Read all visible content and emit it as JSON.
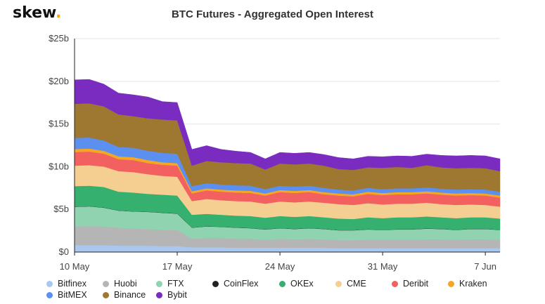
{
  "logo": {
    "text": "skew",
    "dot": "."
  },
  "chart_data": {
    "type": "area",
    "stacked": true,
    "title": "BTC Futures - Aggregated Open Interest",
    "xlabel": "",
    "ylabel": "",
    "ylim": [
      0,
      25
    ],
    "y_ticks": [
      "$0",
      "$5b",
      "$10b",
      "$15b",
      "$20b",
      "$25b"
    ],
    "y_tick_values": [
      0,
      5,
      10,
      15,
      20,
      25
    ],
    "x_ticks": [
      "10 May",
      "17 May",
      "24 May",
      "31 May",
      "7 Jun"
    ],
    "x_tick_positions": [
      0,
      7,
      14,
      21,
      28
    ],
    "x": [
      0,
      1,
      2,
      3,
      4,
      5,
      6,
      7,
      8,
      9,
      10,
      11,
      12,
      13,
      14,
      15,
      16,
      17,
      18,
      19,
      20,
      21,
      22,
      23,
      24,
      25,
      26,
      27,
      28,
      29
    ],
    "series": [
      {
        "name": "Bitfinex",
        "color": "#a9c8f0",
        "values": [
          0.8,
          0.8,
          0.8,
          0.75,
          0.75,
          0.75,
          0.7,
          0.7,
          0.55,
          0.55,
          0.55,
          0.5,
          0.5,
          0.5,
          0.5,
          0.5,
          0.5,
          0.5,
          0.45,
          0.45,
          0.45,
          0.45,
          0.45,
          0.45,
          0.45,
          0.45,
          0.45,
          0.45,
          0.45,
          0.45
        ]
      },
      {
        "name": "Huobi",
        "color": "#b5b5b5",
        "values": [
          2.2,
          2.25,
          2.2,
          2.1,
          2.0,
          1.95,
          1.9,
          1.9,
          1.0,
          1.1,
          1.1,
          1.05,
          1.05,
          0.95,
          1.05,
          1.0,
          1.05,
          1.0,
          0.95,
          0.95,
          1.0,
          1.0,
          1.0,
          1.0,
          1.05,
          1.05,
          1.0,
          1.05,
          1.05,
          1.0
        ]
      },
      {
        "name": "FTX",
        "color": "#8fd3b0",
        "values": [
          2.3,
          2.3,
          2.2,
          2.0,
          2.0,
          2.0,
          2.0,
          1.9,
          1.3,
          1.35,
          1.3,
          1.3,
          1.25,
          1.2,
          1.25,
          1.2,
          1.25,
          1.2,
          1.15,
          1.15,
          1.2,
          1.15,
          1.2,
          1.2,
          1.25,
          1.2,
          1.15,
          1.2,
          1.2,
          1.15
        ]
      },
      {
        "name": "CoinFlex",
        "color": "#222222",
        "values": [
          0.02,
          0.02,
          0.02,
          0.02,
          0.02,
          0.02,
          0.02,
          0.02,
          0.02,
          0.02,
          0.02,
          0.02,
          0.02,
          0.02,
          0.02,
          0.02,
          0.02,
          0.02,
          0.02,
          0.02,
          0.02,
          0.02,
          0.02,
          0.02,
          0.02,
          0.02,
          0.02,
          0.02,
          0.02,
          0.02
        ]
      },
      {
        "name": "OKEx",
        "color": "#35b06e",
        "values": [
          2.4,
          2.4,
          2.4,
          2.2,
          2.2,
          2.1,
          2.1,
          2.1,
          1.5,
          1.45,
          1.4,
          1.4,
          1.4,
          1.35,
          1.4,
          1.4,
          1.4,
          1.35,
          1.35,
          1.3,
          1.4,
          1.35,
          1.4,
          1.4,
          1.4,
          1.35,
          1.35,
          1.35,
          1.35,
          1.3
        ]
      },
      {
        "name": "CME",
        "color": "#f5cf91",
        "values": [
          2.4,
          2.4,
          2.4,
          2.4,
          2.4,
          2.3,
          2.2,
          2.2,
          1.6,
          1.75,
          1.7,
          1.7,
          1.7,
          1.65,
          1.7,
          1.7,
          1.7,
          1.7,
          1.7,
          1.65,
          1.65,
          1.6,
          1.6,
          1.6,
          1.6,
          1.55,
          1.55,
          1.5,
          1.45,
          1.4
        ]
      },
      {
        "name": "Deribit",
        "color": "#f26060",
        "values": [
          1.6,
          1.6,
          1.5,
          1.4,
          1.4,
          1.3,
          1.3,
          1.3,
          0.9,
          1.0,
          1.0,
          1.0,
          1.0,
          0.95,
          1.1,
          1.1,
          1.1,
          1.0,
          1.0,
          1.0,
          1.1,
          1.1,
          1.1,
          1.1,
          1.1,
          1.1,
          1.1,
          1.1,
          1.1,
          1.05
        ]
      },
      {
        "name": "Kraken",
        "color": "#f5a623",
        "values": [
          0.35,
          0.35,
          0.35,
          0.35,
          0.35,
          0.35,
          0.3,
          0.3,
          0.25,
          0.25,
          0.25,
          0.25,
          0.25,
          0.25,
          0.25,
          0.25,
          0.25,
          0.25,
          0.25,
          0.25,
          0.25,
          0.25,
          0.25,
          0.25,
          0.25,
          0.25,
          0.25,
          0.25,
          0.25,
          0.25
        ]
      },
      {
        "name": "BitMEX",
        "color": "#5b8ff0",
        "values": [
          1.3,
          1.3,
          1.2,
          1.1,
          1.1,
          1.1,
          1.1,
          1.1,
          0.6,
          0.6,
          0.6,
          0.6,
          0.6,
          0.5,
          0.5,
          0.5,
          0.5,
          0.5,
          0.45,
          0.45,
          0.45,
          0.45,
          0.45,
          0.45,
          0.45,
          0.45,
          0.45,
          0.45,
          0.45,
          0.45
        ]
      },
      {
        "name": "Binance",
        "color": "#9e7731",
        "values": [
          4.0,
          4.0,
          4.0,
          3.8,
          3.7,
          3.8,
          3.9,
          3.9,
          2.4,
          2.6,
          2.6,
          2.6,
          2.6,
          2.3,
          2.6,
          2.6,
          2.6,
          2.6,
          2.4,
          2.4,
          2.4,
          2.5,
          2.5,
          2.4,
          2.6,
          2.5,
          2.5,
          2.5,
          2.5,
          2.4
        ]
      },
      {
        "name": "Bybit",
        "color": "#7a2cc0",
        "values": [
          2.8,
          2.8,
          2.6,
          2.5,
          2.5,
          2.5,
          2.1,
          2.1,
          1.9,
          1.8,
          1.5,
          1.4,
          1.3,
          1.25,
          1.3,
          1.3,
          1.3,
          1.3,
          1.35,
          1.3,
          1.3,
          1.3,
          1.3,
          1.35,
          1.3,
          1.4,
          1.45,
          1.45,
          1.45,
          1.45
        ]
      }
    ],
    "legend_rows": [
      [
        "Bitfinex",
        "Huobi",
        "FTX",
        "CoinFlex",
        "OKEx",
        "CME",
        "Deribit",
        "Kraken"
      ],
      [
        "BitMEX",
        "Binance",
        "Bybit"
      ]
    ],
    "legend_position": "bottom",
    "grid": true
  }
}
